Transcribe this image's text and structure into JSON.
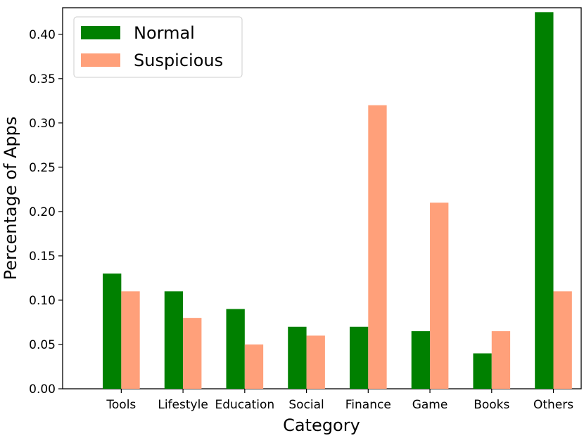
{
  "chart_data": {
    "type": "bar",
    "title": "",
    "xlabel": "Category",
    "ylabel": "Percentage of Apps",
    "categories": [
      "Tools",
      "Lifestyle",
      "Education",
      "Social",
      "Finance",
      "Game",
      "Books",
      "Others"
    ],
    "series": [
      {
        "name": "Normal",
        "color": "#008000",
        "values": [
          0.13,
          0.11,
          0.09,
          0.07,
          0.07,
          0.065,
          0.04,
          0.425
        ]
      },
      {
        "name": "Suspicious",
        "color": "#ffa07a",
        "values": [
          0.11,
          0.08,
          0.05,
          0.06,
          0.32,
          0.21,
          0.065,
          0.11
        ]
      }
    ],
    "ylim": [
      0,
      0.43
    ],
    "yticks": [
      "0.00",
      "0.05",
      "0.10",
      "0.15",
      "0.20",
      "0.25",
      "0.30",
      "0.35",
      "0.40"
    ],
    "legend_position": "top-left",
    "grid": false
  }
}
